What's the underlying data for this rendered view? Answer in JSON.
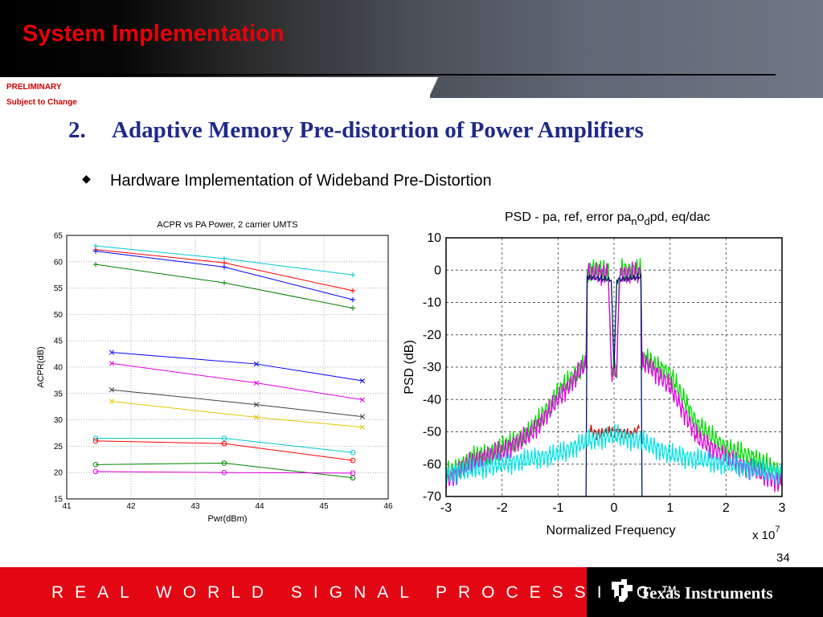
{
  "header": {
    "title": "System Implementation",
    "preliminary": "PRELIMINARY",
    "subject": "Subject to Change"
  },
  "main": {
    "number": "2.",
    "title": "Adaptive Memory Pre-distortion of Power Amplifiers",
    "bullet_glyph": "◆",
    "bullet_text": "Hardware Implementation of Wideband Pre-Distortion"
  },
  "footer": {
    "slogan": "REAL WORLD SIGNAL PROCESSING™",
    "company": "Texas Instruments",
    "page_number": "34"
  },
  "chart_data": [
    {
      "type": "line",
      "title": "ACPR vs PA Power, 2 carrier UMTS",
      "xlabel": "Pwr(dBm)",
      "ylabel": "ACPR(dB)",
      "xlim": [
        41,
        46
      ],
      "ylim": [
        15,
        65
      ],
      "xticks": [
        "41",
        "42",
        "43",
        "44",
        "45",
        "46"
      ],
      "yticks": [
        "15",
        "20",
        "25",
        "30",
        "35",
        "40",
        "45",
        "50",
        "55",
        "60",
        "65"
      ],
      "grid": true,
      "series": [
        {
          "color": "#00c8d2",
          "marker": "+",
          "x": [
            41.45,
            43.45,
            45.45
          ],
          "y": [
            63.0,
            60.6,
            57.5
          ]
        },
        {
          "color": "#ff0000",
          "marker": "+",
          "x": [
            41.45,
            43.45,
            45.45
          ],
          "y": [
            62.3,
            59.8,
            54.5
          ]
        },
        {
          "color": "#0000ff",
          "marker": "+",
          "x": [
            41.45,
            43.45,
            45.45
          ],
          "y": [
            62.0,
            59.0,
            52.8
          ]
        },
        {
          "color": "#008000",
          "marker": "+",
          "x": [
            41.45,
            43.45,
            45.45
          ],
          "y": [
            59.5,
            56.0,
            51.2
          ]
        },
        {
          "color": "#0000ff",
          "marker": "x",
          "x": [
            41.7,
            43.95,
            45.6
          ],
          "y": [
            42.8,
            40.6,
            37.4
          ]
        },
        {
          "color": "#e100e1",
          "marker": "x",
          "x": [
            41.7,
            43.95,
            45.6
          ],
          "y": [
            40.7,
            37.0,
            33.8
          ]
        },
        {
          "color": "#404040",
          "marker": "x",
          "x": [
            41.7,
            43.95,
            45.6
          ],
          "y": [
            35.7,
            32.9,
            30.6
          ]
        },
        {
          "color": "#e1c800",
          "marker": "x",
          "x": [
            41.7,
            43.95,
            45.6
          ],
          "y": [
            33.5,
            30.5,
            28.6
          ]
        },
        {
          "color": "#00c8d2",
          "marker": "o",
          "x": [
            41.45,
            43.45,
            45.45
          ],
          "y": [
            26.5,
            26.5,
            23.8
          ]
        },
        {
          "color": "#ff0000",
          "marker": "o",
          "x": [
            41.45,
            43.45,
            45.45
          ],
          "y": [
            26.0,
            25.5,
            22.3
          ]
        },
        {
          "color": "#008000",
          "marker": "o",
          "x": [
            41.45,
            43.45,
            45.45
          ],
          "y": [
            21.5,
            21.8,
            19.0
          ]
        },
        {
          "color": "#e100e1",
          "marker": "o",
          "x": [
            41.45,
            43.45,
            45.45
          ],
          "y": [
            20.2,
            20.0,
            19.9
          ]
        }
      ]
    },
    {
      "type": "line",
      "title": "PSD - pa, ref, error pa_no_dpd, eq/dac",
      "xlabel": "Normalized Frequency",
      "ylabel": "PSD (dB)",
      "x_multiplier": "x 10^7",
      "xlim": [
        -3,
        3
      ],
      "ylim": [
        -70,
        10
      ],
      "xticks": [
        "-3",
        "-2",
        "-1",
        "0",
        "1",
        "2",
        "3"
      ],
      "yticks": [
        "10",
        "0",
        "-10",
        "-20",
        "-30",
        "-40",
        "-50",
        "-60",
        "-70"
      ],
      "grid": true,
      "series": [
        {
          "color": "#00dd00",
          "x": [
            -3.0,
            -2.5,
            -2.0,
            -1.5,
            -1.0,
            -0.6,
            -0.5,
            -0.48,
            -0.1,
            -0.05,
            0.05,
            0.1,
            0.48,
            0.5,
            0.6,
            1.0,
            1.5,
            2.0,
            2.5,
            3.0
          ],
          "y": [
            -63,
            -58,
            -55,
            -50,
            -38,
            -30,
            -28,
            0,
            0,
            -30,
            -30,
            0,
            0,
            -28,
            -28,
            -32,
            -48,
            -55,
            -58,
            -63
          ]
        },
        {
          "color": "#e100e1",
          "x": [
            -3.0,
            -2.5,
            -2.0,
            -1.5,
            -1.0,
            -0.6,
            -0.5,
            -0.48,
            -0.1,
            -0.05,
            0.05,
            0.1,
            0.48,
            0.5,
            0.6,
            1.0,
            1.5,
            2.0,
            2.5,
            3.0
          ],
          "y": [
            -65,
            -59,
            -56,
            -51,
            -40,
            -31,
            -29,
            -1,
            -1,
            -31,
            -31,
            -1,
            -1,
            -29,
            -29,
            -36,
            -52,
            -58,
            -62,
            -66
          ]
        },
        {
          "color": "#dd0000",
          "x": [
            -0.45,
            -0.3,
            -0.1,
            0.1,
            0.3,
            0.45
          ],
          "y": [
            -49,
            -51,
            -50,
            -50,
            -51,
            -49
          ]
        },
        {
          "color": "#001a66",
          "x": [
            -0.5,
            -0.48,
            -0.05,
            0.0,
            0.05,
            0.48,
            0.5
          ],
          "y": [
            -70,
            -2,
            -3,
            -30,
            -3,
            -2,
            -70
          ]
        },
        {
          "color": "#00e5e5",
          "x": [
            -3.0,
            -2.0,
            -1.0,
            -0.5,
            0.0,
            0.5,
            1.0,
            2.0,
            3.0
          ],
          "y": [
            -63,
            -60,
            -57,
            -53,
            -51,
            -53,
            -57,
            -60,
            -63
          ]
        }
      ]
    }
  ]
}
